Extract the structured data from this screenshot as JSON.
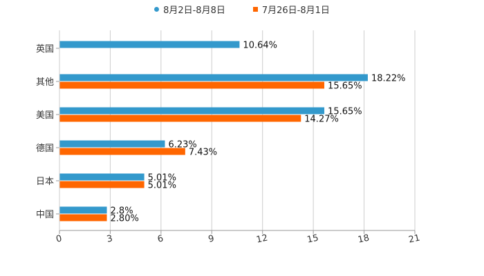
{
  "chart_data": {
    "type": "bar",
    "orientation": "horizontal",
    "categories": [
      "英国",
      "其他",
      "美国",
      "德国",
      "日本",
      "中国"
    ],
    "series": [
      {
        "name": "8月2日-8月8日",
        "color": "#3399cc",
        "values": [
          10.64,
          18.22,
          15.65,
          6.23,
          5.01,
          2.8
        ],
        "labels": [
          "10.64%",
          "18.22%",
          "15.65%",
          "6.23%",
          "5.01%",
          "2.8%"
        ]
      },
      {
        "name": "7月26日-8月1日",
        "color": "#ff6600",
        "values": [
          null,
          15.65,
          14.27,
          7.43,
          5.01,
          2.8
        ],
        "labels": [
          "",
          "15.65%",
          "14.27%",
          "7.43%",
          "5.01%",
          "2.80%"
        ]
      }
    ],
    "x_ticks": [
      "0",
      "3",
      "6",
      "9",
      "12",
      "15",
      "18",
      "21"
    ],
    "xlim": [
      0,
      21
    ],
    "grid": true,
    "legend_position": "top-center"
  }
}
